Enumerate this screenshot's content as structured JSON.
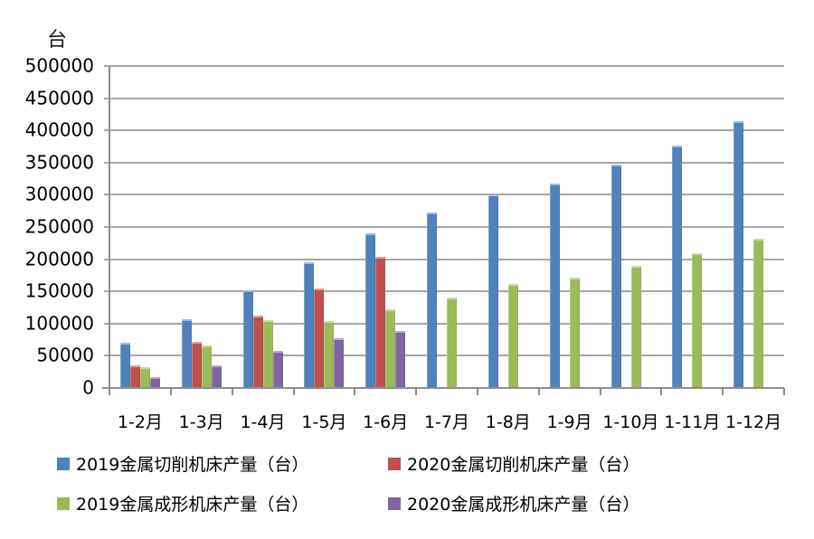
{
  "chart_data": {
    "type": "bar",
    "title": "",
    "ylabel": "台",
    "xlabel": "",
    "categories": [
      "1-2月",
      "1-3月",
      "1-4月",
      "1-5月",
      "1-6月",
      "1-7月",
      "1-8月",
      "1-9月",
      "1-10月",
      "1-11月",
      "1-12月"
    ],
    "series": [
      {
        "name": "2019金属切削机床产量（台）",
        "color": "#4F81BD",
        "values": [
          70000,
          107000,
          152000,
          195000,
          240000,
          272000,
          300000,
          317000,
          347000,
          376000,
          415000
        ]
      },
      {
        "name": "2020金属切削机床产量（台）",
        "color": "#C0504D",
        "values": [
          35000,
          72000,
          113000,
          154000,
          204000,
          null,
          null,
          null,
          null,
          null,
          null
        ]
      },
      {
        "name": "2019金属成形机床产量（台）",
        "color": "#9BBB59",
        "values": [
          32000,
          66000,
          105000,
          104000,
          122000,
          141000,
          161000,
          172000,
          190000,
          210000,
          232000
        ]
      },
      {
        "name": "2020金属成形机床产量（台）",
        "color": "#8064A2",
        "values": [
          17000,
          35000,
          57000,
          77000,
          89000,
          null,
          null,
          null,
          null,
          null,
          null
        ]
      }
    ],
    "ylim": [
      0,
      500000
    ],
    "ytick_step": 50000,
    "ytick_labels": [
      "0",
      "50000",
      "100000",
      "150000",
      "200000",
      "250000",
      "300000",
      "350000",
      "400000",
      "450000",
      "500000"
    ],
    "grid": true,
    "legend_position": "bottom"
  },
  "colors": {
    "gridline": "#a6a6a6",
    "axis": "#8e8e8e",
    "background": "#ffffff",
    "text": "#000000"
  }
}
